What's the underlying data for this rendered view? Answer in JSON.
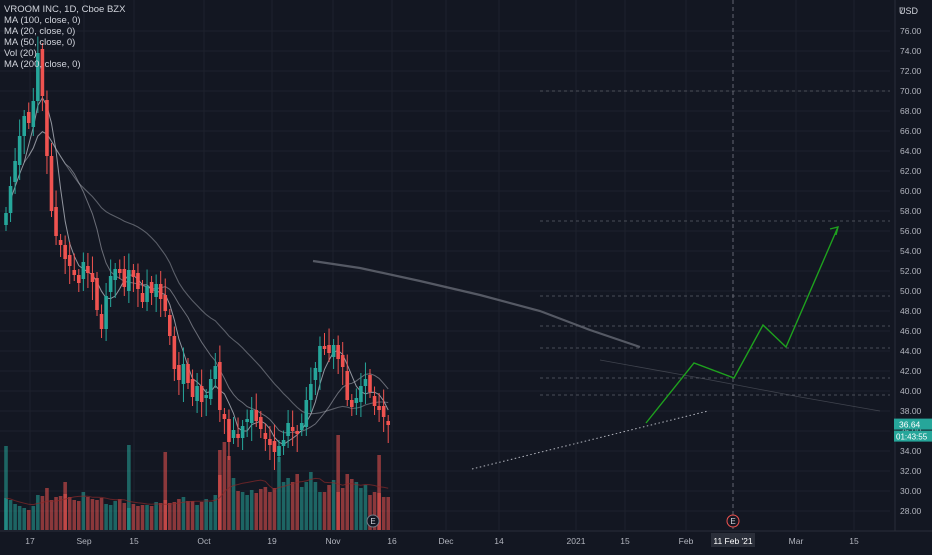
{
  "legend": {
    "title": "VROOM INC, 1D, Cboe BZX",
    "ma100": "MA (100, close, 0)",
    "ma20": "MA (20, close, 0)",
    "ma50": "MA (50, close, 0)",
    "vol": "Vol (20)",
    "ma200": "MA (200, close, 0)"
  },
  "currency_label": "USD",
  "corner_digit": "7",
  "colors": {
    "background": "#131722",
    "up": "#26a69a",
    "down": "#ef5350",
    "ma": "#b2b5be",
    "projection": "#1ea11e",
    "price_tag": "#26a69a"
  },
  "chart_data": {
    "type": "candlestick",
    "ylim": [
      26.5,
      77.0
    ],
    "y_ticks": [
      "28.00",
      "30.00",
      "32.00",
      "34.00",
      "36.00",
      "38.00",
      "40.00",
      "42.00",
      "44.00",
      "46.00",
      "48.00",
      "50.00",
      "52.00",
      "54.00",
      "56.00",
      "58.00",
      "60.00",
      "62.00",
      "64.00",
      "66.00",
      "68.00",
      "70.00",
      "72.00",
      "74.00",
      "76.00"
    ],
    "x_ticks": [
      "17",
      "Sep",
      "15",
      "Oct",
      "19",
      "Nov",
      "16",
      "Dec",
      "14",
      "2021",
      "15",
      "Feb",
      "Mar",
      "15"
    ],
    "last_price": "36.64",
    "countdown": "01:43:55",
    "crosshair_date": "11 Feb '21",
    "earnings_markers": [
      "E",
      "E"
    ],
    "close_series": [
      57.8,
      60.5,
      63.0,
      65.5,
      67.5,
      66.8,
      69.0,
      73.8,
      69.5,
      63.5,
      58.0,
      55.5,
      54.6,
      53.2,
      52.5,
      51.6,
      50.8,
      52.9,
      51.8,
      50.9,
      48.1,
      46.2,
      49.5,
      51.5,
      52.2,
      51.8,
      50.4,
      52.1,
      51.4,
      50.2,
      48.9,
      50.5,
      49.8,
      50.7,
      49.2,
      48.0,
      45.5,
      42.2,
      41.1,
      42.7,
      40.8,
      39.4,
      40.5,
      38.9,
      39.6,
      41.2,
      42.5,
      38.1,
      37.2,
      34.9,
      36.1,
      35.3,
      36.5,
      37.2,
      38.1,
      37.0,
      36.2,
      35.2,
      34.6,
      33.9,
      34.5,
      35.1,
      36.8,
      36.0,
      35.7,
      36.8,
      39.1,
      40.7,
      42.3,
      44.5,
      44.2,
      43.8,
      44.6,
      43.2,
      42.4,
      39.1,
      38.4,
      39.3,
      40.5,
      41.2,
      39.9,
      38.5,
      38.1,
      37.4,
      36.6
    ],
    "volume_relative": [
      0.32,
      0.3,
      0.26,
      0.24,
      0.22,
      0.2,
      0.24,
      0.35,
      0.34,
      0.42,
      0.3,
      0.33,
      0.34,
      0.36,
      0.33,
      0.3,
      0.29,
      0.38,
      0.33,
      0.31,
      0.3,
      0.32,
      0.26,
      0.25,
      0.29,
      0.31,
      0.27,
      0.22,
      0.26,
      0.24,
      0.25,
      0.25,
      0.24,
      0.28,
      0.27,
      0.3,
      0.27,
      0.28,
      0.31,
      0.33,
      0.29,
      0.29,
      0.25,
      0.28,
      0.31,
      0.28,
      0.35,
      0.55,
      0.88,
      0.74,
      0.52,
      0.39,
      0.38,
      0.35,
      0.4,
      0.37,
      0.41,
      0.43,
      0.38,
      0.42,
      0.73,
      0.48,
      0.52,
      0.48,
      0.56,
      0.43,
      0.48,
      0.58,
      0.48,
      0.38,
      0.38,
      0.45,
      0.5,
      0.38,
      0.42,
      0.56,
      0.51,
      0.48,
      0.42,
      0.45,
      0.35,
      0.38,
      0.37,
      0.33,
      0.33
    ],
    "volume_spikes": [
      0.84,
      0.48,
      0.85,
      0.78,
      0.8,
      0.95,
      0.75
    ],
    "projection_path": [
      36.8,
      42.8,
      41.3,
      46.6,
      44.4,
      56.4
    ],
    "levels": [
      70.0,
      57.0,
      49.5,
      46.5,
      44.3,
      41.3,
      39.6
    ],
    "trend_support": [
      [
        32.2
      ],
      [
        38.0
      ]
    ]
  }
}
